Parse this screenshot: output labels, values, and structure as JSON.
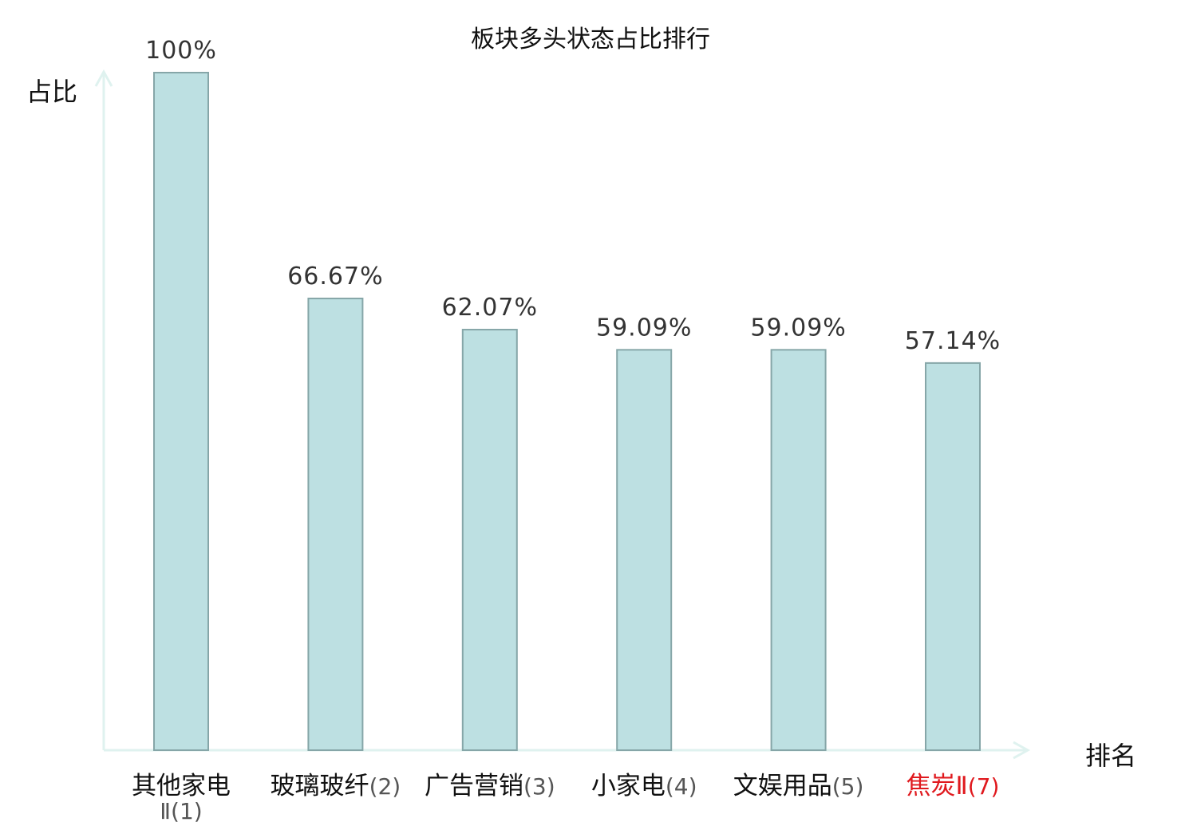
{
  "chart_data": {
    "type": "bar",
    "title": "板块多头状态占比排行",
    "xlabel": "排名",
    "ylabel": "占比",
    "categories": [
      {
        "name": "其他家电Ⅱ",
        "rank": "(1)",
        "highlight": false
      },
      {
        "name": "玻璃玻纤",
        "rank": "(2)",
        "highlight": false
      },
      {
        "name": "广告营销",
        "rank": "(3)",
        "highlight": false
      },
      {
        "name": "小家电",
        "rank": "(4)",
        "highlight": false
      },
      {
        "name": "文娱用品",
        "rank": "(5)",
        "highlight": false
      },
      {
        "name": "焦炭Ⅱ",
        "rank": "(7)",
        "highlight": true
      }
    ],
    "values": [
      100,
      66.67,
      62.07,
      59.09,
      59.09,
      57.14
    ],
    "value_labels": [
      "100%",
      "66.67%",
      "62.07%",
      "59.09%",
      "59.09%",
      "57.14%"
    ],
    "ylim": [
      0,
      100
    ],
    "grid": false,
    "colors": {
      "bar_fill": "#bde0e2",
      "bar_stroke": "#86a6a8",
      "axis": "#dff2ef",
      "label": "#222222",
      "highlight": "#e0191e",
      "rank": "#555555"
    }
  }
}
